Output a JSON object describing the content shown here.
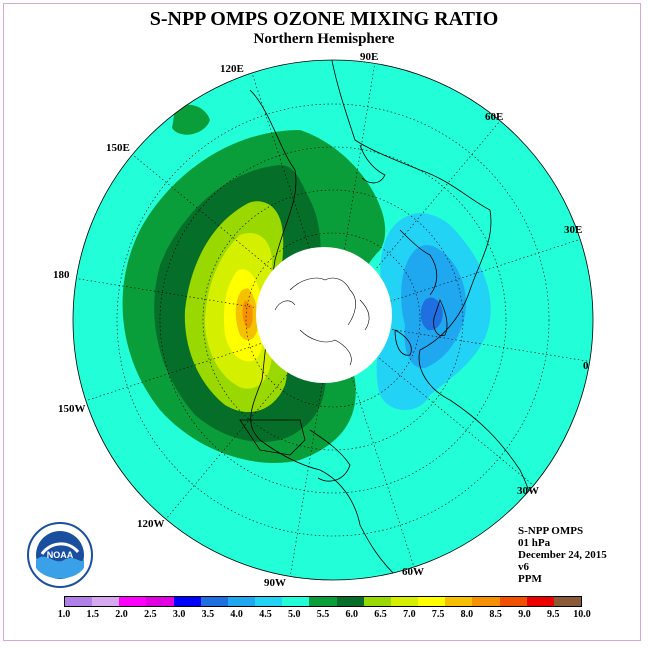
{
  "title": "S-NPP OMPS OZONE MIXING RATIO",
  "subtitle": "Northern Hemisphere",
  "longitude_labels": [
    "90E",
    "60E",
    "30E",
    "0",
    "30W",
    "60W",
    "90W",
    "120W",
    "150W",
    "180",
    "150E",
    "120E"
  ],
  "info": {
    "instrument": "S-NPP OMPS",
    "level": "01 hPa",
    "date": "December 24, 2015",
    "version": "v6",
    "units": "PPM"
  },
  "logo_text": "NOAA",
  "colorbar": {
    "ticks": [
      "1.0",
      "1.5",
      "2.0",
      "2.5",
      "3.0",
      "3.5",
      "4.0",
      "4.5",
      "5.0",
      "5.5",
      "6.0",
      "6.5",
      "7.0",
      "7.5",
      "8.0",
      "8.5",
      "9.0",
      "9.5",
      "10.0"
    ],
    "colors": [
      "#b07fe8",
      "#d6a8f0",
      "#ff00ff",
      "#e000e0",
      "#0000ff",
      "#1f6fe0",
      "#1fa8f0",
      "#22d3f5",
      "#22ffd8",
      "#0a9e3a",
      "#056e28",
      "#99d800",
      "#d4f000",
      "#ffff00",
      "#f5c000",
      "#f59000",
      "#f05000",
      "#ee0000",
      "#8b5a36"
    ]
  },
  "map_colors": {
    "background": "#22ffd8",
    "levels": {
      "5.5": "#0a9e3a",
      "6.0": "#056e28",
      "6.5": "#99d800",
      "7.0": "#d4f000",
      "7.5": "#ffff00",
      "8.0": "#f5c000",
      "8.5": "#f59000",
      "4.5": "#22d3f5",
      "4.0": "#1fa8f0",
      "3.5": "#1f6fe0"
    },
    "no_data": "#ffffff"
  }
}
